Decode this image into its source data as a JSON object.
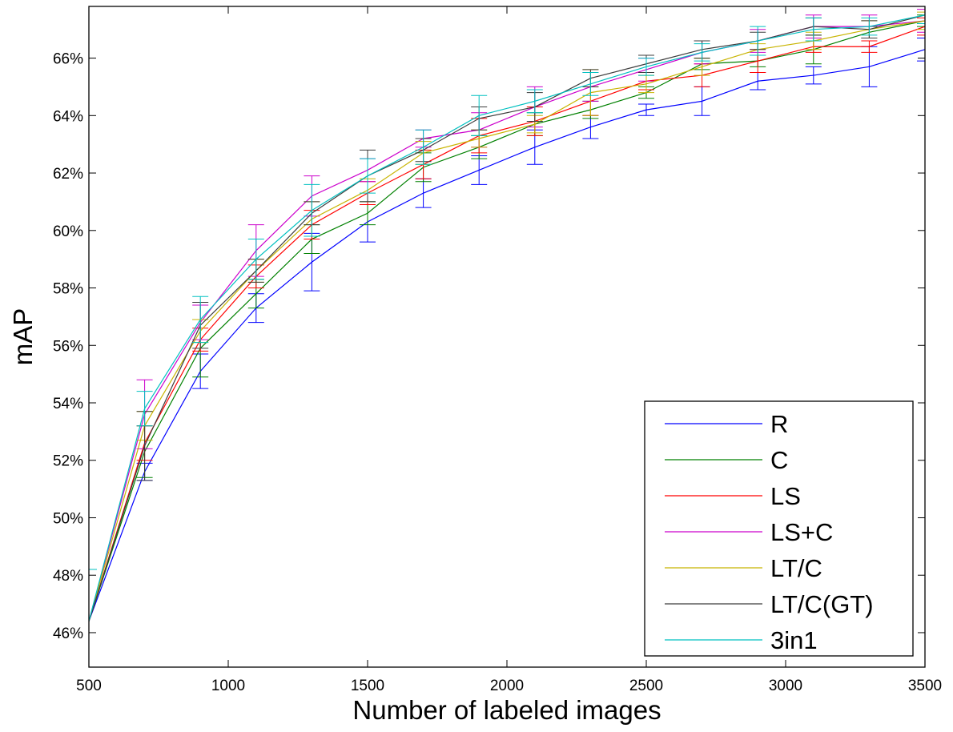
{
  "chart_data": {
    "type": "line",
    "title": "",
    "xlabel": "Number of labeled images",
    "ylabel": "mAP",
    "xlim": [
      500,
      3500
    ],
    "ylim": [
      44.8,
      67.8
    ],
    "xticks": [
      500,
      1000,
      1500,
      2000,
      2500,
      3000,
      3500
    ],
    "xtick_labels": [
      "500",
      "1000",
      "1500",
      "2000",
      "2500",
      "3000",
      "3500"
    ],
    "yticks": [
      46,
      48,
      50,
      52,
      54,
      56,
      58,
      60,
      62,
      64,
      66
    ],
    "ytick_labels": [
      "46%",
      "48%",
      "50%",
      "52%",
      "54%",
      "56%",
      "58%",
      "60%",
      "62%",
      "64%",
      "66%"
    ],
    "grid": false,
    "legend_position": "bottom-right",
    "error_bars": true,
    "x": [
      500,
      700,
      900,
      1100,
      1300,
      1500,
      1700,
      1900,
      2100,
      2300,
      2500,
      2700,
      2900,
      3100,
      3300,
      3500
    ],
    "series": [
      {
        "name": "R",
        "color": "#0000ff",
        "values": [
          46.4,
          51.6,
          55.1,
          57.3,
          58.9,
          60.3,
          61.3,
          62.1,
          62.9,
          63.6,
          64.2,
          64.5,
          65.2,
          65.4,
          65.7,
          66.3
        ],
        "errors": [
          1.8,
          0.3,
          0.6,
          0.5,
          1.0,
          0.7,
          0.5,
          0.5,
          0.6,
          0.4,
          0.2,
          0.5,
          0.3,
          0.3,
          0.7,
          0.4
        ]
      },
      {
        "name": "C",
        "color": "#008000",
        "values": [
          46.4,
          52.3,
          55.9,
          57.8,
          59.7,
          60.6,
          62.2,
          62.9,
          63.7,
          64.2,
          64.8,
          65.8,
          65.9,
          66.3,
          66.9,
          67.3
        ],
        "errors": [
          1.8,
          0.9,
          1.0,
          0.5,
          0.5,
          0.4,
          0.5,
          0.4,
          0.4,
          0.3,
          0.2,
          0.2,
          0.2,
          0.5,
          0.2,
          0.2
        ]
      },
      {
        "name": "LS",
        "color": "#ff0000",
        "values": [
          46.4,
          52.6,
          56.2,
          58.4,
          60.2,
          61.3,
          62.3,
          63.3,
          63.8,
          64.5,
          65.2,
          65.4,
          65.9,
          66.4,
          66.4,
          67.1
        ],
        "errors": [
          1.8,
          0.6,
          0.4,
          0.4,
          0.5,
          0.4,
          0.5,
          0.6,
          0.5,
          0.5,
          0.3,
          0.4,
          0.4,
          0.2,
          0.2,
          0.3
        ]
      },
      {
        "name": "LS+C",
        "color": "#cc00cc",
        "values": [
          46.4,
          53.6,
          56.8,
          59.3,
          61.2,
          62.1,
          63.2,
          63.5,
          64.3,
          65.0,
          65.6,
          66.2,
          66.6,
          67.1,
          67.1,
          67.3
        ],
        "errors": [
          1.8,
          1.2,
          0.6,
          0.9,
          0.7,
          0.4,
          0.3,
          0.6,
          0.7,
          0.5,
          0.4,
          0.4,
          0.4,
          0.4,
          0.4,
          0.4
        ]
      },
      {
        "name": "LT/C",
        "color": "#c8b400",
        "values": [
          46.4,
          53.2,
          56.5,
          58.6,
          60.4,
          61.4,
          62.7,
          63.2,
          63.7,
          64.8,
          65.1,
          65.7,
          66.3,
          66.6,
          67.0,
          67.3
        ],
        "errors": [
          1.8,
          0.5,
          0.4,
          0.4,
          0.6,
          0.4,
          0.4,
          0.3,
          0.3,
          0.8,
          0.3,
          0.3,
          0.2,
          0.3,
          0.3,
          0.3
        ]
      },
      {
        "name": "LT/C(GT)",
        "color": "#3c3c3c",
        "values": [
          46.4,
          52.5,
          56.7,
          58.6,
          60.6,
          61.9,
          62.8,
          63.9,
          64.3,
          65.3,
          65.8,
          66.3,
          66.6,
          67.1,
          67.0,
          67.5
        ],
        "errors": [
          1.8,
          1.2,
          0.8,
          0.4,
          0.4,
          0.9,
          0.4,
          0.4,
          0.5,
          0.3,
          0.3,
          0.3,
          0.3,
          0.3,
          0.3,
          0.3
        ]
      },
      {
        "name": "3in1",
        "color": "#00c0c0",
        "values": [
          46.4,
          53.8,
          56.9,
          59.0,
          60.7,
          61.9,
          62.9,
          64.0,
          64.5,
          65.1,
          65.7,
          66.2,
          66.6,
          67.0,
          67.1,
          67.5
        ],
        "errors": [
          1.8,
          0.6,
          0.8,
          0.7,
          0.9,
          0.6,
          0.6,
          0.7,
          0.4,
          0.4,
          0.3,
          0.3,
          0.5,
          0.4,
          0.3,
          0.3
        ]
      }
    ]
  }
}
